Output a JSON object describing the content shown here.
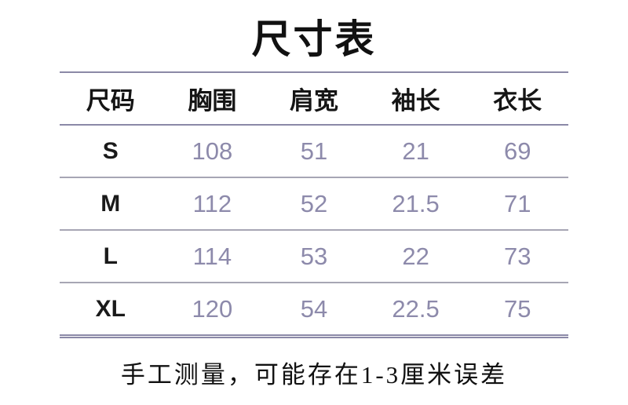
{
  "title": "尺寸表",
  "table": {
    "headers": {
      "size": "尺码",
      "chest": "胸围",
      "shoulder": "肩宽",
      "sleeve": "袖长",
      "length": "衣长"
    },
    "rows": [
      {
        "size": "S",
        "chest": "108",
        "shoulder": "51",
        "sleeve": "21",
        "length": "69"
      },
      {
        "size": "M",
        "chest": "112",
        "shoulder": "52",
        "sleeve": "21.5",
        "length": "71"
      },
      {
        "size": "L",
        "chest": "114",
        "shoulder": "53",
        "sleeve": "22",
        "length": "73"
      },
      {
        "size": "XL",
        "chest": "120",
        "shoulder": "54",
        "sleeve": "22.5",
        "length": "75"
      }
    ]
  },
  "footer": {
    "note": "手工测量，可能存在1-3厘米误差"
  },
  "colors": {
    "number_text": "#8d8aab",
    "rule_dark": "#8b89a7",
    "rule_light": "#a7a6b4",
    "heading_text": "#111111",
    "background": "#ffffff"
  }
}
